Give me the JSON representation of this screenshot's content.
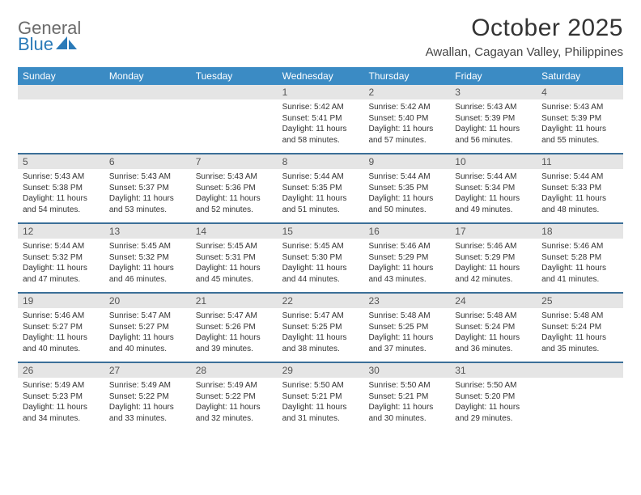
{
  "brand": {
    "text_gray": "General",
    "text_blue": "Blue",
    "icon_color": "#2a7ab8"
  },
  "title": "October 2025",
  "location": "Awallan, Cagayan Valley, Philippines",
  "colors": {
    "header_bg": "#3b8bc4",
    "header_text": "#ffffff",
    "daynum_bg": "#e5e5e5",
    "divider": "#3b6f98",
    "body_text": "#333333"
  },
  "weekdays": [
    "Sunday",
    "Monday",
    "Tuesday",
    "Wednesday",
    "Thursday",
    "Friday",
    "Saturday"
  ],
  "weeks": [
    [
      {
        "n": "",
        "sunrise": "",
        "sunset": "",
        "daylight": ""
      },
      {
        "n": "",
        "sunrise": "",
        "sunset": "",
        "daylight": ""
      },
      {
        "n": "",
        "sunrise": "",
        "sunset": "",
        "daylight": ""
      },
      {
        "n": "1",
        "sunrise": "Sunrise: 5:42 AM",
        "sunset": "Sunset: 5:41 PM",
        "daylight": "Daylight: 11 hours and 58 minutes."
      },
      {
        "n": "2",
        "sunrise": "Sunrise: 5:42 AM",
        "sunset": "Sunset: 5:40 PM",
        "daylight": "Daylight: 11 hours and 57 minutes."
      },
      {
        "n": "3",
        "sunrise": "Sunrise: 5:43 AM",
        "sunset": "Sunset: 5:39 PM",
        "daylight": "Daylight: 11 hours and 56 minutes."
      },
      {
        "n": "4",
        "sunrise": "Sunrise: 5:43 AM",
        "sunset": "Sunset: 5:39 PM",
        "daylight": "Daylight: 11 hours and 55 minutes."
      }
    ],
    [
      {
        "n": "5",
        "sunrise": "Sunrise: 5:43 AM",
        "sunset": "Sunset: 5:38 PM",
        "daylight": "Daylight: 11 hours and 54 minutes."
      },
      {
        "n": "6",
        "sunrise": "Sunrise: 5:43 AM",
        "sunset": "Sunset: 5:37 PM",
        "daylight": "Daylight: 11 hours and 53 minutes."
      },
      {
        "n": "7",
        "sunrise": "Sunrise: 5:43 AM",
        "sunset": "Sunset: 5:36 PM",
        "daylight": "Daylight: 11 hours and 52 minutes."
      },
      {
        "n": "8",
        "sunrise": "Sunrise: 5:44 AM",
        "sunset": "Sunset: 5:35 PM",
        "daylight": "Daylight: 11 hours and 51 minutes."
      },
      {
        "n": "9",
        "sunrise": "Sunrise: 5:44 AM",
        "sunset": "Sunset: 5:35 PM",
        "daylight": "Daylight: 11 hours and 50 minutes."
      },
      {
        "n": "10",
        "sunrise": "Sunrise: 5:44 AM",
        "sunset": "Sunset: 5:34 PM",
        "daylight": "Daylight: 11 hours and 49 minutes."
      },
      {
        "n": "11",
        "sunrise": "Sunrise: 5:44 AM",
        "sunset": "Sunset: 5:33 PM",
        "daylight": "Daylight: 11 hours and 48 minutes."
      }
    ],
    [
      {
        "n": "12",
        "sunrise": "Sunrise: 5:44 AM",
        "sunset": "Sunset: 5:32 PM",
        "daylight": "Daylight: 11 hours and 47 minutes."
      },
      {
        "n": "13",
        "sunrise": "Sunrise: 5:45 AM",
        "sunset": "Sunset: 5:32 PM",
        "daylight": "Daylight: 11 hours and 46 minutes."
      },
      {
        "n": "14",
        "sunrise": "Sunrise: 5:45 AM",
        "sunset": "Sunset: 5:31 PM",
        "daylight": "Daylight: 11 hours and 45 minutes."
      },
      {
        "n": "15",
        "sunrise": "Sunrise: 5:45 AM",
        "sunset": "Sunset: 5:30 PM",
        "daylight": "Daylight: 11 hours and 44 minutes."
      },
      {
        "n": "16",
        "sunrise": "Sunrise: 5:46 AM",
        "sunset": "Sunset: 5:29 PM",
        "daylight": "Daylight: 11 hours and 43 minutes."
      },
      {
        "n": "17",
        "sunrise": "Sunrise: 5:46 AM",
        "sunset": "Sunset: 5:29 PM",
        "daylight": "Daylight: 11 hours and 42 minutes."
      },
      {
        "n": "18",
        "sunrise": "Sunrise: 5:46 AM",
        "sunset": "Sunset: 5:28 PM",
        "daylight": "Daylight: 11 hours and 41 minutes."
      }
    ],
    [
      {
        "n": "19",
        "sunrise": "Sunrise: 5:46 AM",
        "sunset": "Sunset: 5:27 PM",
        "daylight": "Daylight: 11 hours and 40 minutes."
      },
      {
        "n": "20",
        "sunrise": "Sunrise: 5:47 AM",
        "sunset": "Sunset: 5:27 PM",
        "daylight": "Daylight: 11 hours and 40 minutes."
      },
      {
        "n": "21",
        "sunrise": "Sunrise: 5:47 AM",
        "sunset": "Sunset: 5:26 PM",
        "daylight": "Daylight: 11 hours and 39 minutes."
      },
      {
        "n": "22",
        "sunrise": "Sunrise: 5:47 AM",
        "sunset": "Sunset: 5:25 PM",
        "daylight": "Daylight: 11 hours and 38 minutes."
      },
      {
        "n": "23",
        "sunrise": "Sunrise: 5:48 AM",
        "sunset": "Sunset: 5:25 PM",
        "daylight": "Daylight: 11 hours and 37 minutes."
      },
      {
        "n": "24",
        "sunrise": "Sunrise: 5:48 AM",
        "sunset": "Sunset: 5:24 PM",
        "daylight": "Daylight: 11 hours and 36 minutes."
      },
      {
        "n": "25",
        "sunrise": "Sunrise: 5:48 AM",
        "sunset": "Sunset: 5:24 PM",
        "daylight": "Daylight: 11 hours and 35 minutes."
      }
    ],
    [
      {
        "n": "26",
        "sunrise": "Sunrise: 5:49 AM",
        "sunset": "Sunset: 5:23 PM",
        "daylight": "Daylight: 11 hours and 34 minutes."
      },
      {
        "n": "27",
        "sunrise": "Sunrise: 5:49 AM",
        "sunset": "Sunset: 5:22 PM",
        "daylight": "Daylight: 11 hours and 33 minutes."
      },
      {
        "n": "28",
        "sunrise": "Sunrise: 5:49 AM",
        "sunset": "Sunset: 5:22 PM",
        "daylight": "Daylight: 11 hours and 32 minutes."
      },
      {
        "n": "29",
        "sunrise": "Sunrise: 5:50 AM",
        "sunset": "Sunset: 5:21 PM",
        "daylight": "Daylight: 11 hours and 31 minutes."
      },
      {
        "n": "30",
        "sunrise": "Sunrise: 5:50 AM",
        "sunset": "Sunset: 5:21 PM",
        "daylight": "Daylight: 11 hours and 30 minutes."
      },
      {
        "n": "31",
        "sunrise": "Sunrise: 5:50 AM",
        "sunset": "Sunset: 5:20 PM",
        "daylight": "Daylight: 11 hours and 29 minutes."
      },
      {
        "n": "",
        "sunrise": "",
        "sunset": "",
        "daylight": ""
      }
    ]
  ]
}
